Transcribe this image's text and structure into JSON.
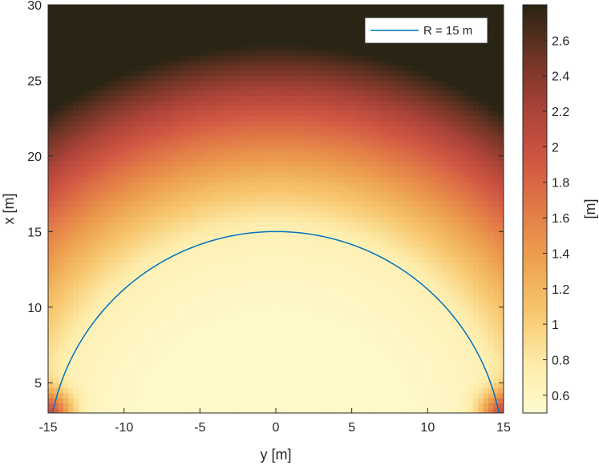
{
  "chart_data": {
    "type": "heatmap",
    "title": "",
    "xlabel": "y [m]",
    "ylabel": "x [m]",
    "xlim": [
      -15,
      15
    ],
    "ylim": [
      3,
      30
    ],
    "xticks": [
      -15,
      -10,
      -5,
      0,
      5,
      10,
      15
    ],
    "xtick_labels": [
      "-15",
      "-10",
      "-5",
      "0",
      "5",
      "10",
      "15"
    ],
    "yticks": [
      5,
      10,
      15,
      20,
      25,
      30
    ],
    "ytick_labels": [
      "5",
      "10",
      "15",
      "20",
      "25",
      "30"
    ],
    "colorbar": {
      "label": "[m]",
      "range": [
        0.5,
        2.8
      ],
      "ticks": [
        0.6,
        0.8,
        1,
        1.2,
        1.4,
        1.6,
        1.8,
        2,
        2.2,
        2.4,
        2.6
      ],
      "tick_labels": [
        "0.6",
        "0.8",
        "1",
        "1.2",
        "1.4",
        "1.6",
        "1.8",
        "2",
        "2.2",
        "2.4",
        "2.6"
      ],
      "colormap": [
        "#fffbd0",
        "#fdeba8",
        "#f7c66e",
        "#eda24f",
        "#e27a47",
        "#cf5543",
        "#a84237",
        "#6e3425",
        "#2a2414"
      ]
    },
    "series": [
      {
        "name": "R = 15 m",
        "kind": "semicircle",
        "radius": 15,
        "center": [
          0,
          0
        ],
        "color": "#0072bd"
      }
    ],
    "legend_position": "top-right",
    "grid": false
  }
}
